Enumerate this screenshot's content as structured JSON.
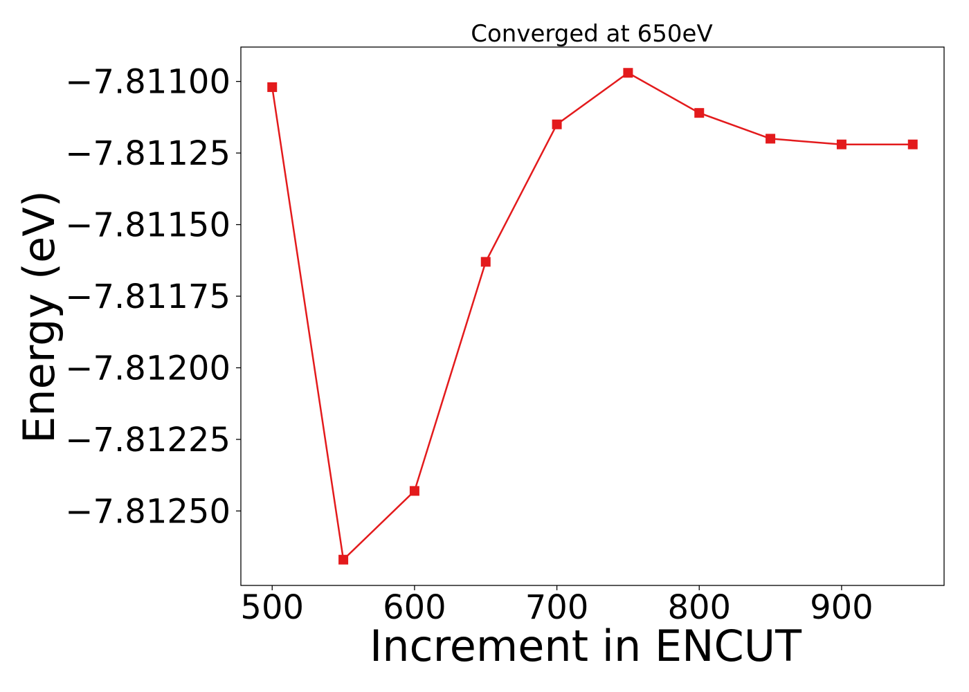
{
  "chart_data": {
    "type": "line",
    "title": "Converged at 650eV",
    "xlabel": "Increment in ENCUT",
    "ylabel": "Energy (eV)",
    "x": [
      500,
      550,
      600,
      650,
      700,
      750,
      800,
      850,
      900,
      950
    ],
    "series": [
      {
        "values": [
          -7.81102,
          -7.81267,
          -7.81243,
          -7.81163,
          -7.81115,
          -7.81097,
          -7.81111,
          -7.8112,
          -7.81122,
          -7.81122
        ],
        "color": "#e31a1c",
        "marker": "square"
      }
    ],
    "xlim": [
      478,
      972
    ],
    "ylim": [
      -7.81276,
      -7.81088
    ],
    "xticks": [
      500,
      600,
      700,
      800,
      900
    ],
    "xtick_labels": [
      "500",
      "600",
      "700",
      "800",
      "900"
    ],
    "yticks": [
      -7.811,
      -7.81125,
      -7.8115,
      -7.81175,
      -7.812,
      -7.81225,
      -7.8125
    ],
    "ytick_labels": [
      "−7.81100",
      "−7.81125",
      "−7.81150",
      "−7.81175",
      "−7.81200",
      "−7.81225",
      "−7.81250"
    ],
    "grid": false,
    "legend": "none"
  }
}
